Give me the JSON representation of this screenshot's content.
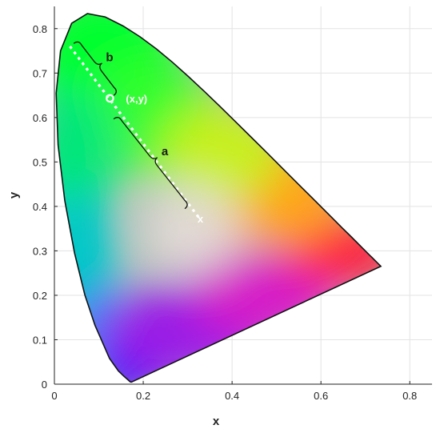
{
  "chart_data": {
    "type": "scatter",
    "title": "",
    "xlabel": "x",
    "ylabel": "y",
    "xlim": [
      0,
      0.85
    ],
    "ylim": [
      0,
      0.85
    ],
    "x_ticks": [
      0,
      0.2,
      0.4,
      0.6,
      0.8
    ],
    "x_tick_labels": [
      "0",
      "0.2",
      "0.4",
      "0.6",
      "0.8"
    ],
    "y_ticks": [
      0,
      0.1,
      0.2,
      0.3,
      0.4,
      0.5,
      0.6,
      0.7,
      0.8
    ],
    "y_tick_labels": [
      "0",
      "0.1",
      "0.2",
      "0.3",
      "0.4",
      "0.5",
      "0.6",
      "0.7",
      "0.8"
    ],
    "grid": true,
    "gamut_boundary": [
      [
        0.1741,
        0.005
      ],
      [
        0.1738,
        0.0049
      ],
      [
        0.1736,
        0.0049
      ],
      [
        0.1726,
        0.0048
      ],
      [
        0.1714,
        0.0051
      ],
      [
        0.1689,
        0.0069
      ],
      [
        0.1644,
        0.0109
      ],
      [
        0.1566,
        0.0177
      ],
      [
        0.144,
        0.0297
      ],
      [
        0.1241,
        0.0578
      ],
      [
        0.0913,
        0.1327
      ],
      [
        0.0687,
        0.2007
      ],
      [
        0.0454,
        0.295
      ],
      [
        0.0235,
        0.4127
      ],
      [
        0.0082,
        0.5384
      ],
      [
        0.0039,
        0.6548
      ],
      [
        0.0139,
        0.7502
      ],
      [
        0.0389,
        0.812
      ],
      [
        0.0743,
        0.8338
      ],
      [
        0.1142,
        0.8262
      ],
      [
        0.1547,
        0.8059
      ],
      [
        0.1929,
        0.7816
      ],
      [
        0.2296,
        0.7543
      ],
      [
        0.2658,
        0.7243
      ],
      [
        0.3016,
        0.6923
      ],
      [
        0.3373,
        0.6589
      ],
      [
        0.3731,
        0.6245
      ],
      [
        0.4087,
        0.5896
      ],
      [
        0.4441,
        0.5547
      ],
      [
        0.4788,
        0.5202
      ],
      [
        0.5125,
        0.4866
      ],
      [
        0.5448,
        0.4544
      ],
      [
        0.5752,
        0.4242
      ],
      [
        0.6029,
        0.3965
      ],
      [
        0.627,
        0.3725
      ],
      [
        0.6482,
        0.3514
      ],
      [
        0.6658,
        0.334
      ],
      [
        0.6801,
        0.3197
      ],
      [
        0.6915,
        0.3083
      ],
      [
        0.7006,
        0.2993
      ],
      [
        0.7079,
        0.292
      ],
      [
        0.714,
        0.2859
      ],
      [
        0.719,
        0.2809
      ],
      [
        0.723,
        0.277
      ],
      [
        0.726,
        0.274
      ],
      [
        0.7283,
        0.2717
      ],
      [
        0.73,
        0.27
      ],
      [
        0.7311,
        0.2689
      ],
      [
        0.732,
        0.268
      ],
      [
        0.7327,
        0.2673
      ],
      [
        0.7334,
        0.2666
      ],
      [
        0.734,
        0.266
      ],
      [
        0.7344,
        0.2656
      ],
      [
        0.7347,
        0.2653
      ]
    ],
    "line_points": [
      [
        0.035,
        0.76
      ],
      [
        0.325,
        0.375
      ]
    ],
    "point_on_line": [
      0.125,
      0.643
    ],
    "white_point": [
      0.325,
      0.375
    ],
    "annotations": {
      "point_label": "(x,y)",
      "white_point_label": "x",
      "brace_b_label": "b",
      "brace_a_label": "a",
      "brace_b_span": [
        [
          0.035,
          0.76
        ],
        [
          0.125,
          0.643
        ]
      ],
      "brace_a_span": [
        [
          0.125,
          0.59
        ],
        [
          0.285,
          0.388
        ]
      ]
    }
  }
}
